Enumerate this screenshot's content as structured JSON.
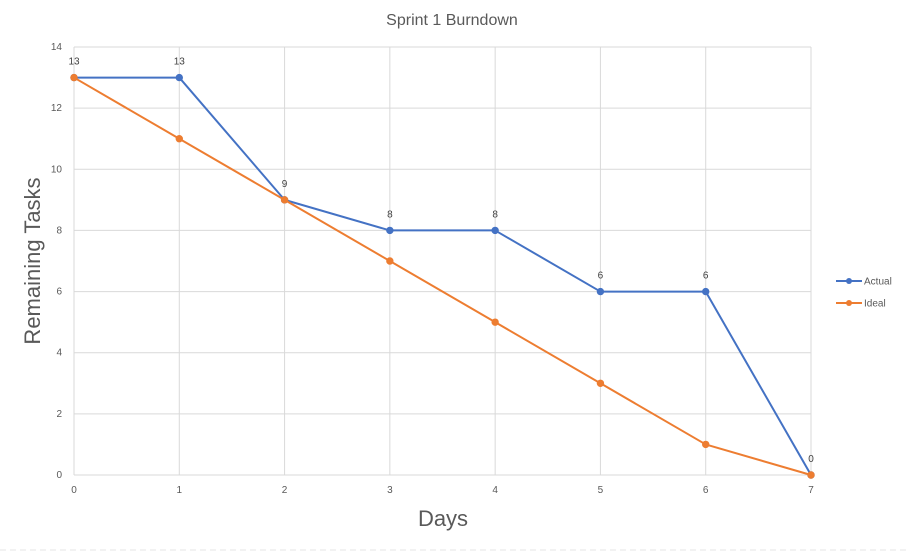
{
  "chart_data": {
    "type": "line",
    "title": "Sprint 1 Burndown",
    "xlabel": "Days",
    "ylabel": "Remaining Tasks",
    "x": [
      0,
      1,
      2,
      3,
      4,
      5,
      6,
      7
    ],
    "xlim": [
      0,
      7
    ],
    "ylim": [
      0,
      14
    ],
    "y_ticks": [
      0,
      2,
      4,
      6,
      8,
      10,
      12,
      14
    ],
    "grid": true,
    "legend_position": "right",
    "series": [
      {
        "name": "Actual",
        "color": "#4472c4",
        "values": [
          13,
          13,
          9,
          8,
          8,
          6,
          6,
          0
        ],
        "data_labels": [
          "13",
          "13",
          "9",
          "8",
          "8",
          "6",
          "6",
          "0"
        ]
      },
      {
        "name": "Ideal",
        "color": "#ed7d31",
        "values": [
          13,
          11,
          9,
          7,
          5,
          3,
          1,
          0
        ]
      }
    ]
  }
}
